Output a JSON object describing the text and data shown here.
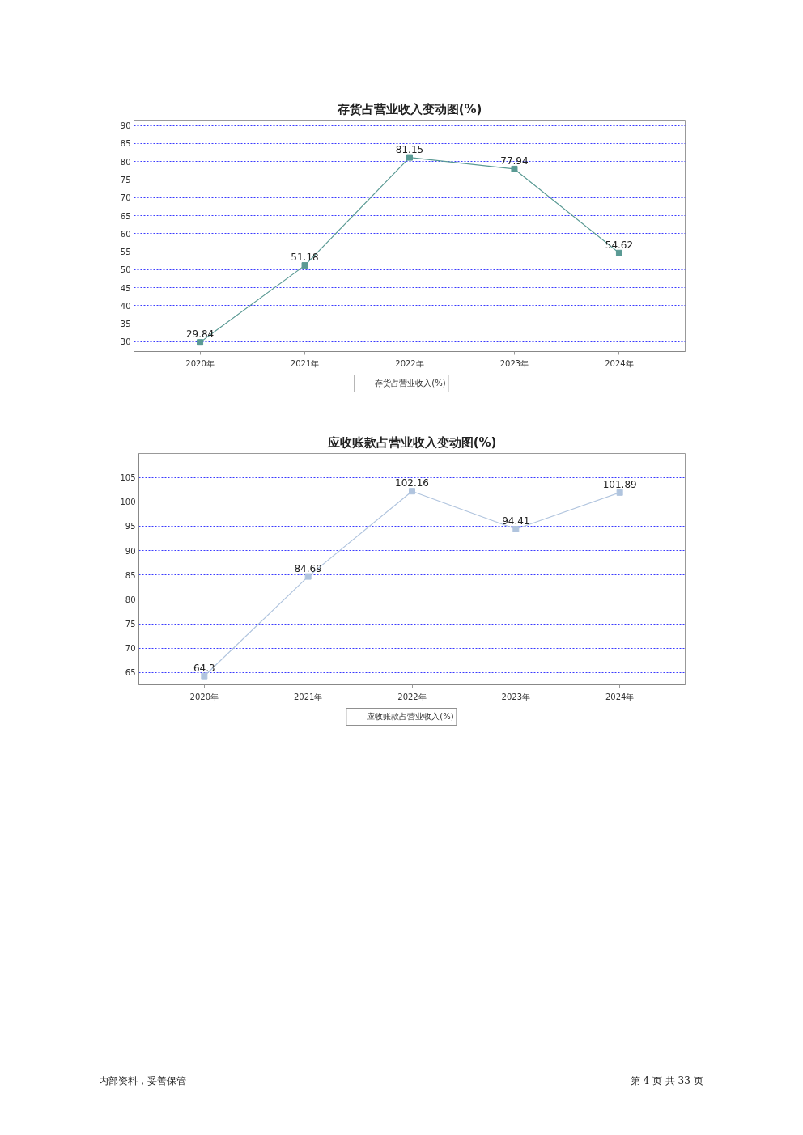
{
  "chart_data": [
    {
      "type": "line",
      "title": "存货占营业收入变动图(%)",
      "categories": [
        "2020年",
        "2021年",
        "2022年",
        "2023年",
        "2024年"
      ],
      "series": [
        {
          "name": "存货占营业收入(%)",
          "color": "#5a9a94",
          "values": [
            29.84,
            51.18,
            81.15,
            77.94,
            54.62
          ]
        }
      ],
      "ylim": [
        27.3,
        91.5
      ],
      "yticks": [
        30,
        35,
        40,
        45,
        50,
        55,
        60,
        65,
        70,
        75,
        80,
        85,
        90
      ],
      "grid": "y",
      "legend": "bottom",
      "marker": "square",
      "line_style": "solid",
      "data_labels": true
    },
    {
      "type": "line",
      "title": "应收账款占营业收入变动图(%)",
      "categories": [
        "2020年",
        "2021年",
        "2022年",
        "2023年",
        "2024年"
      ],
      "series": [
        {
          "name": "应收账款占营业收入(%)",
          "color": "#b0c4de",
          "values": [
            64.3,
            84.69,
            102.16,
            94.41,
            101.89
          ]
        }
      ],
      "ylim": [
        62.5,
        109.9
      ],
      "yticks": [
        65,
        70,
        75,
        80,
        85,
        90,
        95,
        100,
        105
      ],
      "grid": "y",
      "legend": "bottom",
      "marker": "square",
      "line_style": "solid",
      "data_labels": true,
      "annotations": [
        "内部资料，妥善保管",
        "第 4 页  共 33 页"
      ]
    }
  ]
}
